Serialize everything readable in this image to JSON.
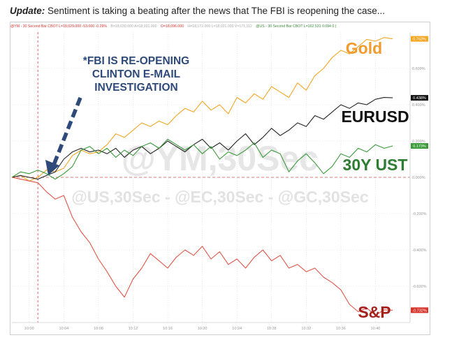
{
  "caption": {
    "prefix": "Update:",
    "text": "Sentiment is taking a beating after the news that The FBI is reopening the case..."
  },
  "legend": [
    {
      "text": "@YM - 30 Second Bar  CBOT  L=18,029.000  -53.000  -0.29%",
      "color": "#d9342b"
    },
    {
      "text": "B=18,030.000  A=18,031.000",
      "color": "#aaaaaa"
    },
    {
      "text": "O=18,096.000",
      "color": "#d9342b"
    },
    {
      "text": "H=18,172.000  L=18,021.000  V=171,112",
      "color": "#aaaaaa"
    },
    {
      "text": "@US - 30 Second Bar  CBOT  L=162.531  0.094  0.(",
      "color": "#3c8c3c"
    }
  ],
  "annotation": {
    "lines": [
      "*FBI IS RE-OPENING",
      "CLINTON E-MAIL",
      "INVESTIGATION"
    ],
    "color": "#2e4a7a"
  },
  "watermarks": [
    "@YM,30Sec",
    "@US,30Sec - @EC,30Sec - @GC,30Sec"
  ],
  "series_labels": [
    {
      "text": "Gold",
      "color": "#f29a2e"
    },
    {
      "text": "EURUSD",
      "color": "#111111"
    },
    {
      "text": "30Y UST",
      "color": "#2e7d32"
    },
    {
      "text": "S&P",
      "color": "#a3201c"
    }
  ],
  "chart_data": {
    "type": "line",
    "x_ticks": [
      "10:00",
      "10:04",
      "10:08",
      "10:12",
      "10:16",
      "10:20",
      "10:24",
      "10:28",
      "10:32",
      "10:36",
      "10:40"
    ],
    "y_ticks": [
      0.6,
      0.4,
      0.2,
      0.0,
      -0.2,
      -0.4,
      -0.6
    ],
    "y_tick_labels": [
      "0.600%",
      "0.400%",
      "0.200%",
      "0.000%",
      "-0.200%",
      "-0.400%",
      "-0.600%"
    ],
    "ylim": [
      -0.8,
      0.8
    ],
    "xlim": [
      "09:58",
      "10:44"
    ],
    "event_time": "10:01",
    "grid": true,
    "series": [
      {
        "name": "Gold",
        "color": "#f5a623",
        "last_label": "0.763%",
        "label_bg": "#f5a623",
        "points": [
          [
            "09:58",
            0.0
          ],
          [
            "09:59",
            0.01
          ],
          [
            "10:00",
            -0.02
          ],
          [
            "10:01",
            0.0
          ],
          [
            "10:02",
            0.04
          ],
          [
            "10:03",
            0.03
          ],
          [
            "10:04",
            0.05
          ],
          [
            "10:05",
            0.12
          ],
          [
            "10:06",
            0.15
          ],
          [
            "10:07",
            0.13
          ],
          [
            "10:08",
            0.14
          ],
          [
            "10:09",
            0.18
          ],
          [
            "10:10",
            0.24
          ],
          [
            "10:11",
            0.22
          ],
          [
            "10:12",
            0.26
          ],
          [
            "10:13",
            0.3
          ],
          [
            "10:14",
            0.28
          ],
          [
            "10:15",
            0.31
          ],
          [
            "10:16",
            0.29
          ],
          [
            "10:17",
            0.34
          ],
          [
            "10:18",
            0.38
          ],
          [
            "10:19",
            0.36
          ],
          [
            "10:20",
            0.42
          ],
          [
            "10:21",
            0.37
          ],
          [
            "10:22",
            0.4
          ],
          [
            "10:23",
            0.35
          ],
          [
            "10:24",
            0.44
          ],
          [
            "10:25",
            0.41
          ],
          [
            "10:26",
            0.46
          ],
          [
            "10:27",
            0.43
          ],
          [
            "10:28",
            0.5
          ],
          [
            "10:29",
            0.47
          ],
          [
            "10:30",
            0.44
          ],
          [
            "10:31",
            0.52
          ],
          [
            "10:32",
            0.48
          ],
          [
            "10:33",
            0.56
          ],
          [
            "10:34",
            0.6
          ],
          [
            "10:35",
            0.66
          ],
          [
            "10:36",
            0.7
          ],
          [
            "10:37",
            0.68
          ],
          [
            "10:38",
            0.72
          ],
          [
            "10:39",
            0.76
          ],
          [
            "10:40",
            0.75
          ],
          [
            "10:41",
            0.77
          ],
          [
            "10:42",
            0.763
          ]
        ]
      },
      {
        "name": "EURUSD",
        "color": "#222222",
        "last_label": "0.438%",
        "label_bg": "#111111",
        "points": [
          [
            "09:58",
            0.0
          ],
          [
            "09:59",
            0.01
          ],
          [
            "10:00",
            0.0
          ],
          [
            "10:01",
            -0.01
          ],
          [
            "10:02",
            0.01
          ],
          [
            "10:03",
            0.03
          ],
          [
            "10:04",
            0.1
          ],
          [
            "10:05",
            0.14
          ],
          [
            "10:06",
            0.16
          ],
          [
            "10:07",
            0.14
          ],
          [
            "10:08",
            0.15
          ],
          [
            "10:09",
            0.13
          ],
          [
            "10:10",
            0.16
          ],
          [
            "10:11",
            0.11
          ],
          [
            "10:12",
            0.15
          ],
          [
            "10:13",
            0.17
          ],
          [
            "10:14",
            0.13
          ],
          [
            "10:15",
            0.16
          ],
          [
            "10:16",
            0.2
          ],
          [
            "10:17",
            0.17
          ],
          [
            "10:18",
            0.14
          ],
          [
            "10:19",
            0.18
          ],
          [
            "10:20",
            0.21
          ],
          [
            "10:21",
            0.16
          ],
          [
            "10:22",
            0.19
          ],
          [
            "10:23",
            0.15
          ],
          [
            "10:24",
            0.2
          ],
          [
            "10:25",
            0.24
          ],
          [
            "10:26",
            0.18
          ],
          [
            "10:27",
            0.22
          ],
          [
            "10:28",
            0.27
          ],
          [
            "10:29",
            0.23
          ],
          [
            "10:30",
            0.26
          ],
          [
            "10:31",
            0.3
          ],
          [
            "10:32",
            0.28
          ],
          [
            "10:33",
            0.34
          ],
          [
            "10:34",
            0.32
          ],
          [
            "10:35",
            0.36
          ],
          [
            "10:36",
            0.4
          ],
          [
            "10:37",
            0.38
          ],
          [
            "10:38",
            0.41
          ],
          [
            "10:39",
            0.4
          ],
          [
            "10:40",
            0.43
          ],
          [
            "10:41",
            0.44
          ],
          [
            "10:42",
            0.438
          ]
        ]
      },
      {
        "name": "30Y UST",
        "color": "#3a9a3a",
        "last_label": "0.173%",
        "label_bg": "#3a9a3a",
        "points": [
          [
            "09:58",
            0.0
          ],
          [
            "09:59",
            0.03
          ],
          [
            "10:00",
            0.02
          ],
          [
            "10:01",
            0.04
          ],
          [
            "10:02",
            0.02
          ],
          [
            "10:03",
            -0.01
          ],
          [
            "10:04",
            0.02
          ],
          [
            "10:05",
            0.06
          ],
          [
            "10:06",
            0.15
          ],
          [
            "10:07",
            0.17
          ],
          [
            "10:08",
            0.13
          ],
          [
            "10:09",
            0.16
          ],
          [
            "10:10",
            0.11
          ],
          [
            "10:11",
            0.15
          ],
          [
            "10:12",
            0.12
          ],
          [
            "10:13",
            0.17
          ],
          [
            "10:14",
            0.19
          ],
          [
            "10:15",
            0.16
          ],
          [
            "10:16",
            0.21
          ],
          [
            "10:17",
            0.18
          ],
          [
            "10:18",
            0.15
          ],
          [
            "10:19",
            0.18
          ],
          [
            "10:20",
            0.13
          ],
          [
            "10:21",
            0.17
          ],
          [
            "10:22",
            0.1
          ],
          [
            "10:23",
            0.14
          ],
          [
            "10:24",
            0.12
          ],
          [
            "10:25",
            0.15
          ],
          [
            "10:26",
            0.19
          ],
          [
            "10:27",
            0.11
          ],
          [
            "10:28",
            0.15
          ],
          [
            "10:29",
            0.13
          ],
          [
            "10:30",
            0.03
          ],
          [
            "10:31",
            0.09
          ],
          [
            "10:32",
            0.13
          ],
          [
            "10:33",
            0.08
          ],
          [
            "10:34",
            0.02
          ],
          [
            "10:35",
            0.06
          ],
          [
            "10:36",
            0.13
          ],
          [
            "10:37",
            0.11
          ],
          [
            "10:38",
            0.16
          ],
          [
            "10:39",
            0.14
          ],
          [
            "10:40",
            0.18
          ],
          [
            "10:41",
            0.16
          ],
          [
            "10:42",
            0.173
          ]
        ]
      },
      {
        "name": "S&P",
        "color": "#e0554a",
        "last_label": "-0.732%",
        "label_bg": "#d9342b",
        "points": [
          [
            "09:58",
            0.0
          ],
          [
            "09:59",
            -0.01
          ],
          [
            "10:00",
            -0.02
          ],
          [
            "10:01",
            -0.03
          ],
          [
            "10:02",
            -0.08
          ],
          [
            "10:03",
            -0.12
          ],
          [
            "10:04",
            -0.1
          ],
          [
            "10:05",
            -0.22
          ],
          [
            "10:06",
            -0.3
          ],
          [
            "10:07",
            -0.36
          ],
          [
            "10:08",
            -0.45
          ],
          [
            "10:09",
            -0.52
          ],
          [
            "10:10",
            -0.6
          ],
          [
            "10:11",
            -0.66
          ],
          [
            "10:12",
            -0.56
          ],
          [
            "10:13",
            -0.5
          ],
          [
            "10:14",
            -0.42
          ],
          [
            "10:15",
            -0.46
          ],
          [
            "10:16",
            -0.5
          ],
          [
            "10:17",
            -0.44
          ],
          [
            "10:18",
            -0.4
          ],
          [
            "10:19",
            -0.43
          ],
          [
            "10:20",
            -0.38
          ],
          [
            "10:21",
            -0.45
          ],
          [
            "10:22",
            -0.41
          ],
          [
            "10:23",
            -0.48
          ],
          [
            "10:24",
            -0.45
          ],
          [
            "10:25",
            -0.5
          ],
          [
            "10:26",
            -0.44
          ],
          [
            "10:27",
            -0.4
          ],
          [
            "10:28",
            -0.46
          ],
          [
            "10:29",
            -0.43
          ],
          [
            "10:30",
            -0.5
          ],
          [
            "10:31",
            -0.48
          ],
          [
            "10:32",
            -0.52
          ],
          [
            "10:33",
            -0.5
          ],
          [
            "10:34",
            -0.55
          ],
          [
            "10:35",
            -0.58
          ],
          [
            "10:36",
            -0.62
          ],
          [
            "10:37",
            -0.7
          ],
          [
            "10:38",
            -0.74
          ],
          [
            "10:39",
            -0.72
          ],
          [
            "10:40",
            -0.76
          ],
          [
            "10:41",
            -0.73
          ],
          [
            "10:42",
            -0.732
          ]
        ]
      }
    ]
  }
}
